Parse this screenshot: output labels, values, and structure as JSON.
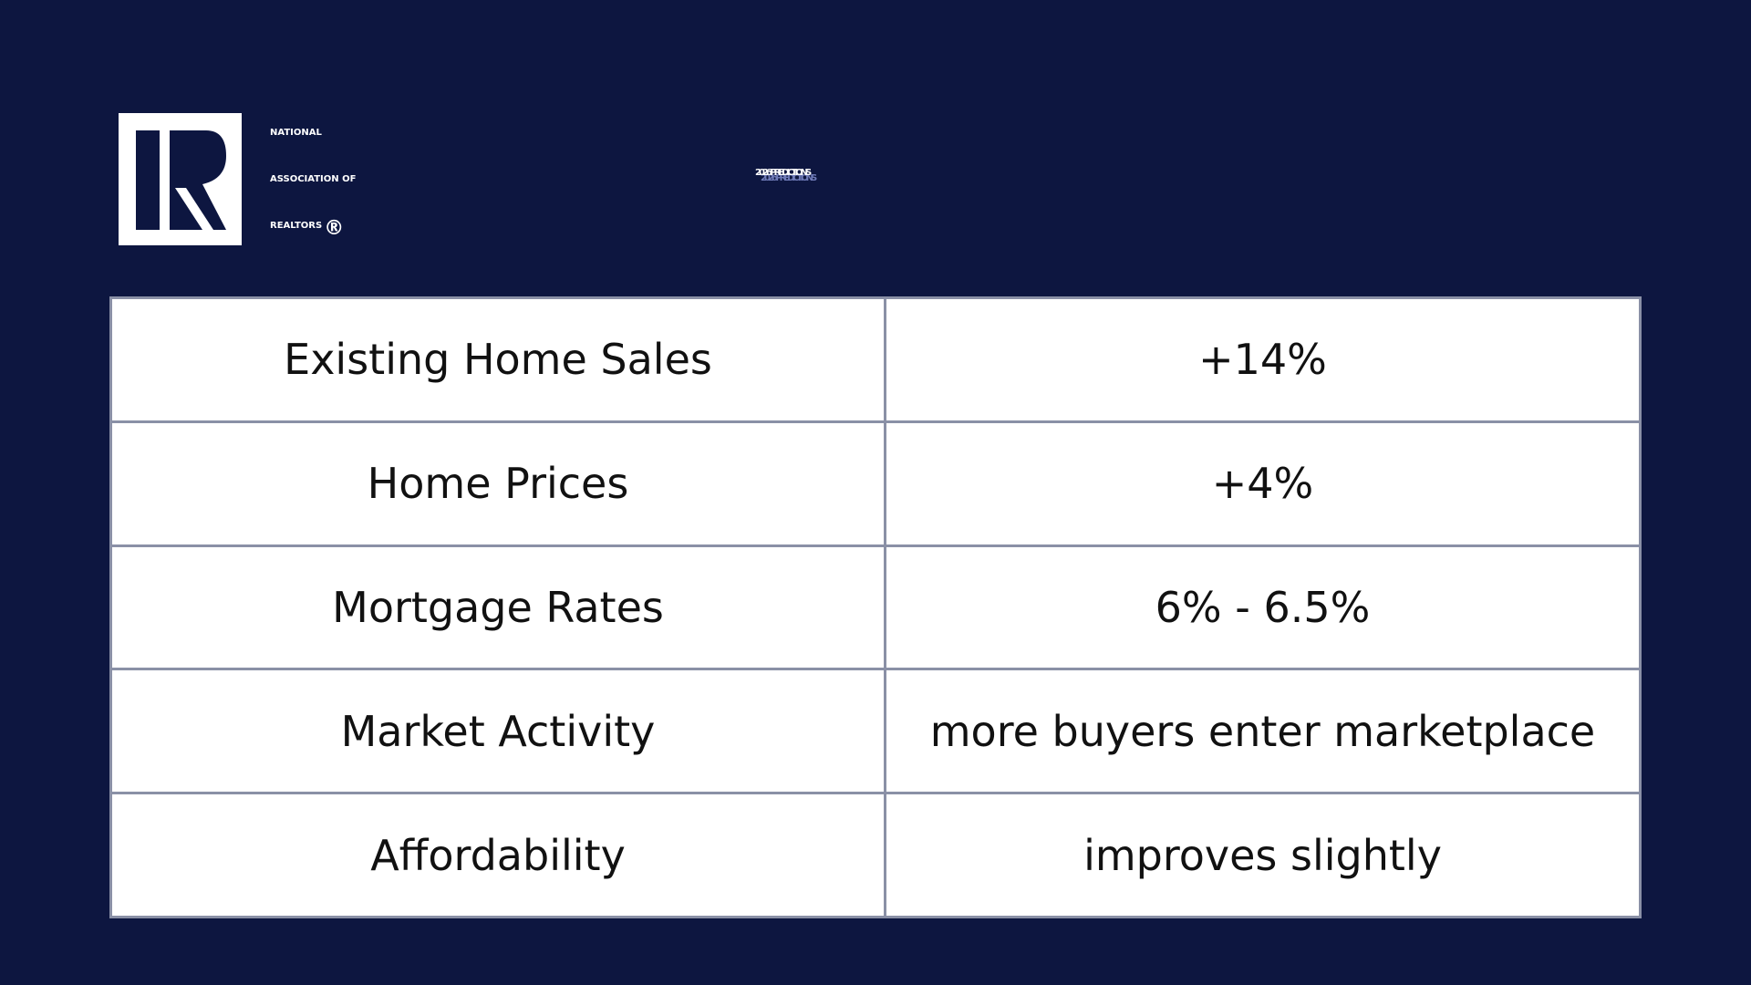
{
  "colors": {
    "background": "#0d1640",
    "text_on_dark": "#ffffff",
    "title_shadow": "#6f7bb8",
    "table_bg": "#ffffff",
    "table_border": "#8a90a6",
    "table_text": "#111111"
  },
  "logo": {
    "icon": "realtor-r-logo-icon",
    "line1": "NATIONAL",
    "line2": "ASSOCIATION OF",
    "line3": "REALTORS",
    "registered_mark": "®"
  },
  "title": "2026 PREDICTIONS",
  "table": {
    "rows": [
      {
        "metric": "Existing Home Sales",
        "prediction": "+14%"
      },
      {
        "metric": "Home Prices",
        "prediction": "+4%"
      },
      {
        "metric": "Mortgage Rates",
        "prediction": "6% - 6.5%"
      },
      {
        "metric": "Market Activity",
        "prediction": "more buyers enter marketplace"
      },
      {
        "metric": "Affordability",
        "prediction": "improves slightly"
      }
    ]
  }
}
